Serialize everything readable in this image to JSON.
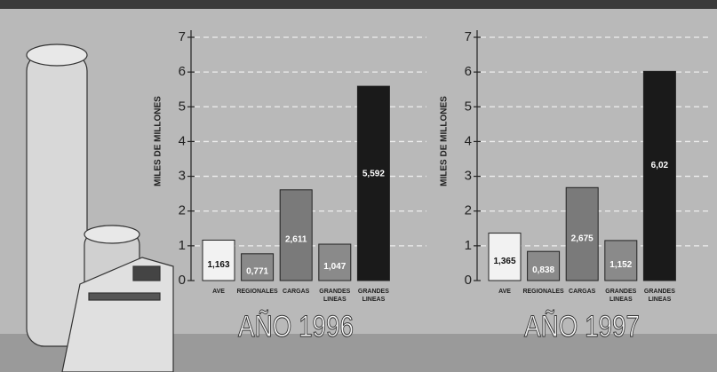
{
  "chart_data": [
    {
      "type": "bar",
      "title": "AÑO 1996",
      "y_label": "MILES DE MILLONES",
      "categories": [
        "AVE",
        "REGIONALES",
        "CARGAS",
        "GRANDES LINEAS",
        "GRANDES LINEAS"
      ],
      "values": [
        1.163,
        0.771,
        2.611,
        1.047,
        5.592
      ],
      "value_labels": [
        "1,163",
        "0,771",
        "2,611",
        "1,047",
        "5,592"
      ],
      "colors": [
        "#f2f2f2",
        "#8a8a8a",
        "#7a7a7a",
        "#8a8a8a",
        "#1a1a1a"
      ],
      "ylim": [
        0,
        7
      ],
      "yticks": [
        0,
        1,
        2,
        3,
        4,
        5,
        6,
        7
      ],
      "grid": true
    },
    {
      "type": "bar",
      "title": "AÑO 1997",
      "y_label": "MILES DE MILLONES",
      "categories": [
        "AVE",
        "REGIONALES",
        "CARGAS",
        "GRANDES LINEAS",
        "GRANDES LINEAS"
      ],
      "values": [
        1.365,
        0.838,
        2.675,
        1.152,
        6.02
      ],
      "value_labels": [
        "1,365",
        "0,838",
        "2,675",
        "1,152",
        "6,02"
      ],
      "colors": [
        "#f2f2f2",
        "#8a8a8a",
        "#7a7a7a",
        "#8a8a8a",
        "#1a1a1a"
      ],
      "ylim": [
        0,
        7
      ],
      "yticks": [
        0,
        1,
        2,
        3,
        4,
        5,
        6,
        7
      ],
      "grid": true
    }
  ]
}
